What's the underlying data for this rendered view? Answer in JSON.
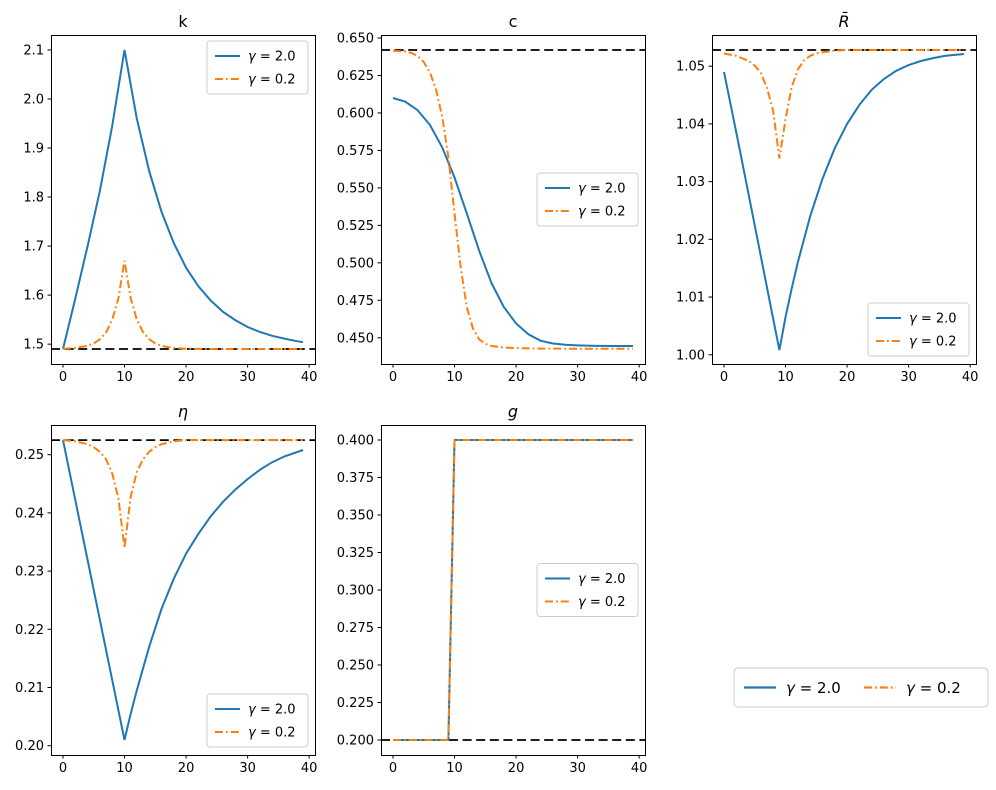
{
  "figure": {
    "background": "#ffffff"
  },
  "colors": {
    "series1": "#1f77b4",
    "series2": "#ff7f0e",
    "steady_state": "#000000",
    "spine": "#000000",
    "legend_border": "#cccccc",
    "legend_bg": "#ffffff"
  },
  "legend_labels": [
    "γ = 2.0",
    "γ = 0.2"
  ],
  "chart_data": [
    {
      "type": "line",
      "title": "k",
      "title_italic": false,
      "xlim": [
        -1.95,
        40.95
      ],
      "ylim": [
        1.4595,
        2.1305
      ],
      "xticks": [
        0,
        10,
        20,
        30,
        40
      ],
      "xtick_labels": [
        "0",
        "10",
        "20",
        "30",
        "40"
      ],
      "yticks": [
        1.5,
        1.6,
        1.7,
        1.8,
        1.9,
        2.0,
        2.1
      ],
      "ytick_labels": [
        "1.5",
        "1.6",
        "1.7",
        "1.8",
        "1.9",
        "2.0",
        "2.1"
      ],
      "steady_state": 1.49,
      "legend_loc": "upper right",
      "series": [
        {
          "name": "γ = 2.0",
          "color": "#1f77b4",
          "style": "solid",
          "x": [
            0,
            2,
            4,
            6,
            8,
            10,
            12,
            14,
            16,
            18,
            20,
            22,
            24,
            26,
            28,
            30,
            32,
            34,
            36,
            38,
            39
          ],
          "y": [
            1.49,
            1.593,
            1.7,
            1.813,
            1.945,
            2.1,
            1.96,
            1.853,
            1.77,
            1.706,
            1.656,
            1.618,
            1.589,
            1.566,
            1.549,
            1.535,
            1.525,
            1.517,
            1.511,
            1.506,
            1.504
          ]
        },
        {
          "name": "γ = 0.2",
          "color": "#ff7f0e",
          "style": "dashdot",
          "x": [
            0,
            2,
            4,
            5,
            6,
            7,
            8,
            9,
            10,
            11,
            12,
            13,
            14,
            15,
            16,
            17,
            18,
            20,
            22,
            26,
            30,
            39
          ],
          "y": [
            1.4907,
            1.4922,
            1.4966,
            1.5015,
            1.51,
            1.524,
            1.55,
            1.593,
            1.67,
            1.594,
            1.55,
            1.525,
            1.51,
            1.5015,
            1.4966,
            1.494,
            1.4922,
            1.4907,
            1.4903,
            1.4901,
            1.49,
            1.49
          ]
        }
      ]
    },
    {
      "type": "line",
      "title": "c",
      "title_italic": false,
      "xlim": [
        -1.95,
        40.95
      ],
      "ylim": [
        0.4325,
        0.652
      ],
      "xticks": [
        0,
        10,
        20,
        30,
        40
      ],
      "xtick_labels": [
        "0",
        "10",
        "20",
        "30",
        "40"
      ],
      "yticks": [
        0.45,
        0.475,
        0.5,
        0.525,
        0.55,
        0.575,
        0.6,
        0.625,
        0.65
      ],
      "ytick_labels": [
        "0.450",
        "0.475",
        "0.500",
        "0.525",
        "0.550",
        "0.575",
        "0.600",
        "0.625",
        "0.650"
      ],
      "steady_state": 0.642,
      "legend_loc": "center right",
      "series": [
        {
          "name": "γ = 2.0",
          "color": "#1f77b4",
          "style": "solid",
          "x": [
            0,
            2,
            4,
            6,
            8,
            10,
            12,
            14,
            16,
            18,
            20,
            22,
            24,
            26,
            28,
            30,
            33,
            36,
            39
          ],
          "y": [
            0.61,
            0.6075,
            0.6018,
            0.592,
            0.577,
            0.557,
            0.533,
            0.508,
            0.4865,
            0.4705,
            0.4595,
            0.4523,
            0.448,
            0.4462,
            0.4453,
            0.4449,
            0.4446,
            0.4445,
            0.4445
          ]
        },
        {
          "name": "γ = 0.2",
          "color": "#ff7f0e",
          "style": "dashdot",
          "x": [
            0,
            2,
            3,
            4,
            5,
            6,
            7,
            8,
            9,
            10,
            11,
            12,
            13,
            14,
            15,
            16,
            18,
            20,
            24,
            28,
            32,
            39
          ],
          "y": [
            0.6415,
            0.641,
            0.64,
            0.638,
            0.634,
            0.627,
            0.6155,
            0.5975,
            0.5705,
            0.533,
            0.497,
            0.4705,
            0.456,
            0.449,
            0.446,
            0.4445,
            0.4435,
            0.4431,
            0.4428,
            0.4427,
            0.4427,
            0.4427
          ]
        }
      ]
    },
    {
      "type": "line",
      "title": "R̄",
      "title_italic": true,
      "xlim": [
        -1.95,
        40.95
      ],
      "ylim": [
        0.9984,
        1.0554
      ],
      "xticks": [
        0,
        10,
        20,
        30,
        40
      ],
      "xtick_labels": [
        "0",
        "10",
        "20",
        "30",
        "40"
      ],
      "yticks": [
        1.0,
        1.01,
        1.02,
        1.03,
        1.04,
        1.05
      ],
      "ytick_labels": [
        "1.00",
        "1.01",
        "1.02",
        "1.03",
        "1.04",
        "1.05"
      ],
      "steady_state": 1.0528,
      "legend_loc": "lower right",
      "series": [
        {
          "name": "γ = 2.0",
          "color": "#1f77b4",
          "style": "solid",
          "x": [
            0,
            2,
            4,
            6,
            8,
            9,
            10,
            11,
            12,
            14,
            16,
            18,
            20,
            22,
            24,
            26,
            28,
            30,
            32,
            34,
            36,
            39
          ],
          "y": [
            1.049,
            1.0385,
            1.0278,
            1.017,
            1.0062,
            1.0008,
            1.0065,
            1.0115,
            1.016,
            1.024,
            1.0305,
            1.0358,
            1.04,
            1.0433,
            1.0459,
            1.0478,
            1.0492,
            1.0502,
            1.0509,
            1.0514,
            1.0518,
            1.0521
          ]
        },
        {
          "name": "γ = 0.2",
          "color": "#ff7f0e",
          "style": "dashdot",
          "x": [
            0,
            2,
            4,
            5,
            6,
            7,
            8,
            9,
            10,
            11,
            12,
            13,
            14,
            15,
            16,
            18,
            20,
            25,
            30,
            39
          ],
          "y": [
            1.0522,
            1.0518,
            1.0509,
            1.0501,
            1.0488,
            1.0462,
            1.0422,
            1.034,
            1.0408,
            1.0464,
            1.0494,
            1.051,
            1.0518,
            1.0522,
            1.0524,
            1.0527,
            1.0528,
            1.0528,
            1.0528,
            1.0528
          ]
        }
      ]
    },
    {
      "type": "line",
      "title": "η",
      "title_italic": true,
      "xlim": [
        -1.95,
        40.95
      ],
      "ylim": [
        0.1984,
        0.2551
      ],
      "xticks": [
        0,
        10,
        20,
        30,
        40
      ],
      "xtick_labels": [
        "0",
        "10",
        "20",
        "30",
        "40"
      ],
      "yticks": [
        0.2,
        0.21,
        0.22,
        0.23,
        0.24,
        0.25
      ],
      "ytick_labels": [
        "0.20",
        "0.21",
        "0.22",
        "0.23",
        "0.24",
        "0.25"
      ],
      "steady_state": 0.2525,
      "legend_loc": "lower right",
      "series": [
        {
          "name": "γ = 2.0",
          "color": "#1f77b4",
          "style": "solid",
          "x": [
            0,
            2,
            4,
            6,
            8,
            10,
            11,
            12,
            14,
            16,
            18,
            20,
            22,
            24,
            26,
            28,
            30,
            32,
            34,
            36,
            39
          ],
          "y": [
            0.2525,
            0.2422,
            0.2319,
            0.2216,
            0.2113,
            0.201,
            0.2055,
            0.2095,
            0.217,
            0.2235,
            0.2287,
            0.233,
            0.2364,
            0.2394,
            0.2419,
            0.244,
            0.2458,
            0.2474,
            0.2487,
            0.2497,
            0.2508
          ]
        },
        {
          "name": "γ = 0.2",
          "color": "#ff7f0e",
          "style": "dashdot",
          "x": [
            0,
            2,
            4,
            5,
            6,
            7,
            8,
            9,
            10,
            11,
            12,
            13,
            14,
            15,
            16,
            18,
            20,
            25,
            30,
            39
          ],
          "y": [
            0.2525,
            0.2523,
            0.2518,
            0.2513,
            0.2505,
            0.2492,
            0.2468,
            0.2425,
            0.234,
            0.2428,
            0.247,
            0.2492,
            0.2505,
            0.2513,
            0.2518,
            0.2523,
            0.2525,
            0.2525,
            0.2525,
            0.2525
          ]
        }
      ]
    },
    {
      "type": "line",
      "title": "g",
      "title_italic": true,
      "xlim": [
        -1.95,
        40.95
      ],
      "ylim": [
        0.19,
        0.41
      ],
      "xticks": [
        0,
        10,
        20,
        30,
        40
      ],
      "xtick_labels": [
        "0",
        "10",
        "20",
        "30",
        "40"
      ],
      "yticks": [
        0.2,
        0.225,
        0.25,
        0.275,
        0.3,
        0.325,
        0.35,
        0.375,
        0.4
      ],
      "ytick_labels": [
        "0.200",
        "0.225",
        "0.250",
        "0.275",
        "0.300",
        "0.325",
        "0.350",
        "0.375",
        "0.400"
      ],
      "steady_state": 0.2,
      "legend_loc": "center right",
      "series": [
        {
          "name": "γ = 2.0",
          "color": "#1f77b4",
          "style": "solid",
          "x": [
            0,
            9,
            10,
            39
          ],
          "y": [
            0.2,
            0.2,
            0.4,
            0.4
          ]
        },
        {
          "name": "γ = 0.2",
          "color": "#ff7f0e",
          "style": "dashdot",
          "x": [
            0,
            9,
            10,
            39
          ],
          "y": [
            0.2,
            0.2,
            0.4,
            0.4
          ]
        }
      ]
    }
  ],
  "fig_legend": {
    "entries": [
      {
        "label": "γ = 2.0",
        "color": "#1f77b4",
        "style": "solid"
      },
      {
        "label": "γ = 0.2",
        "color": "#ff7f0e",
        "style": "dashdot"
      }
    ]
  }
}
